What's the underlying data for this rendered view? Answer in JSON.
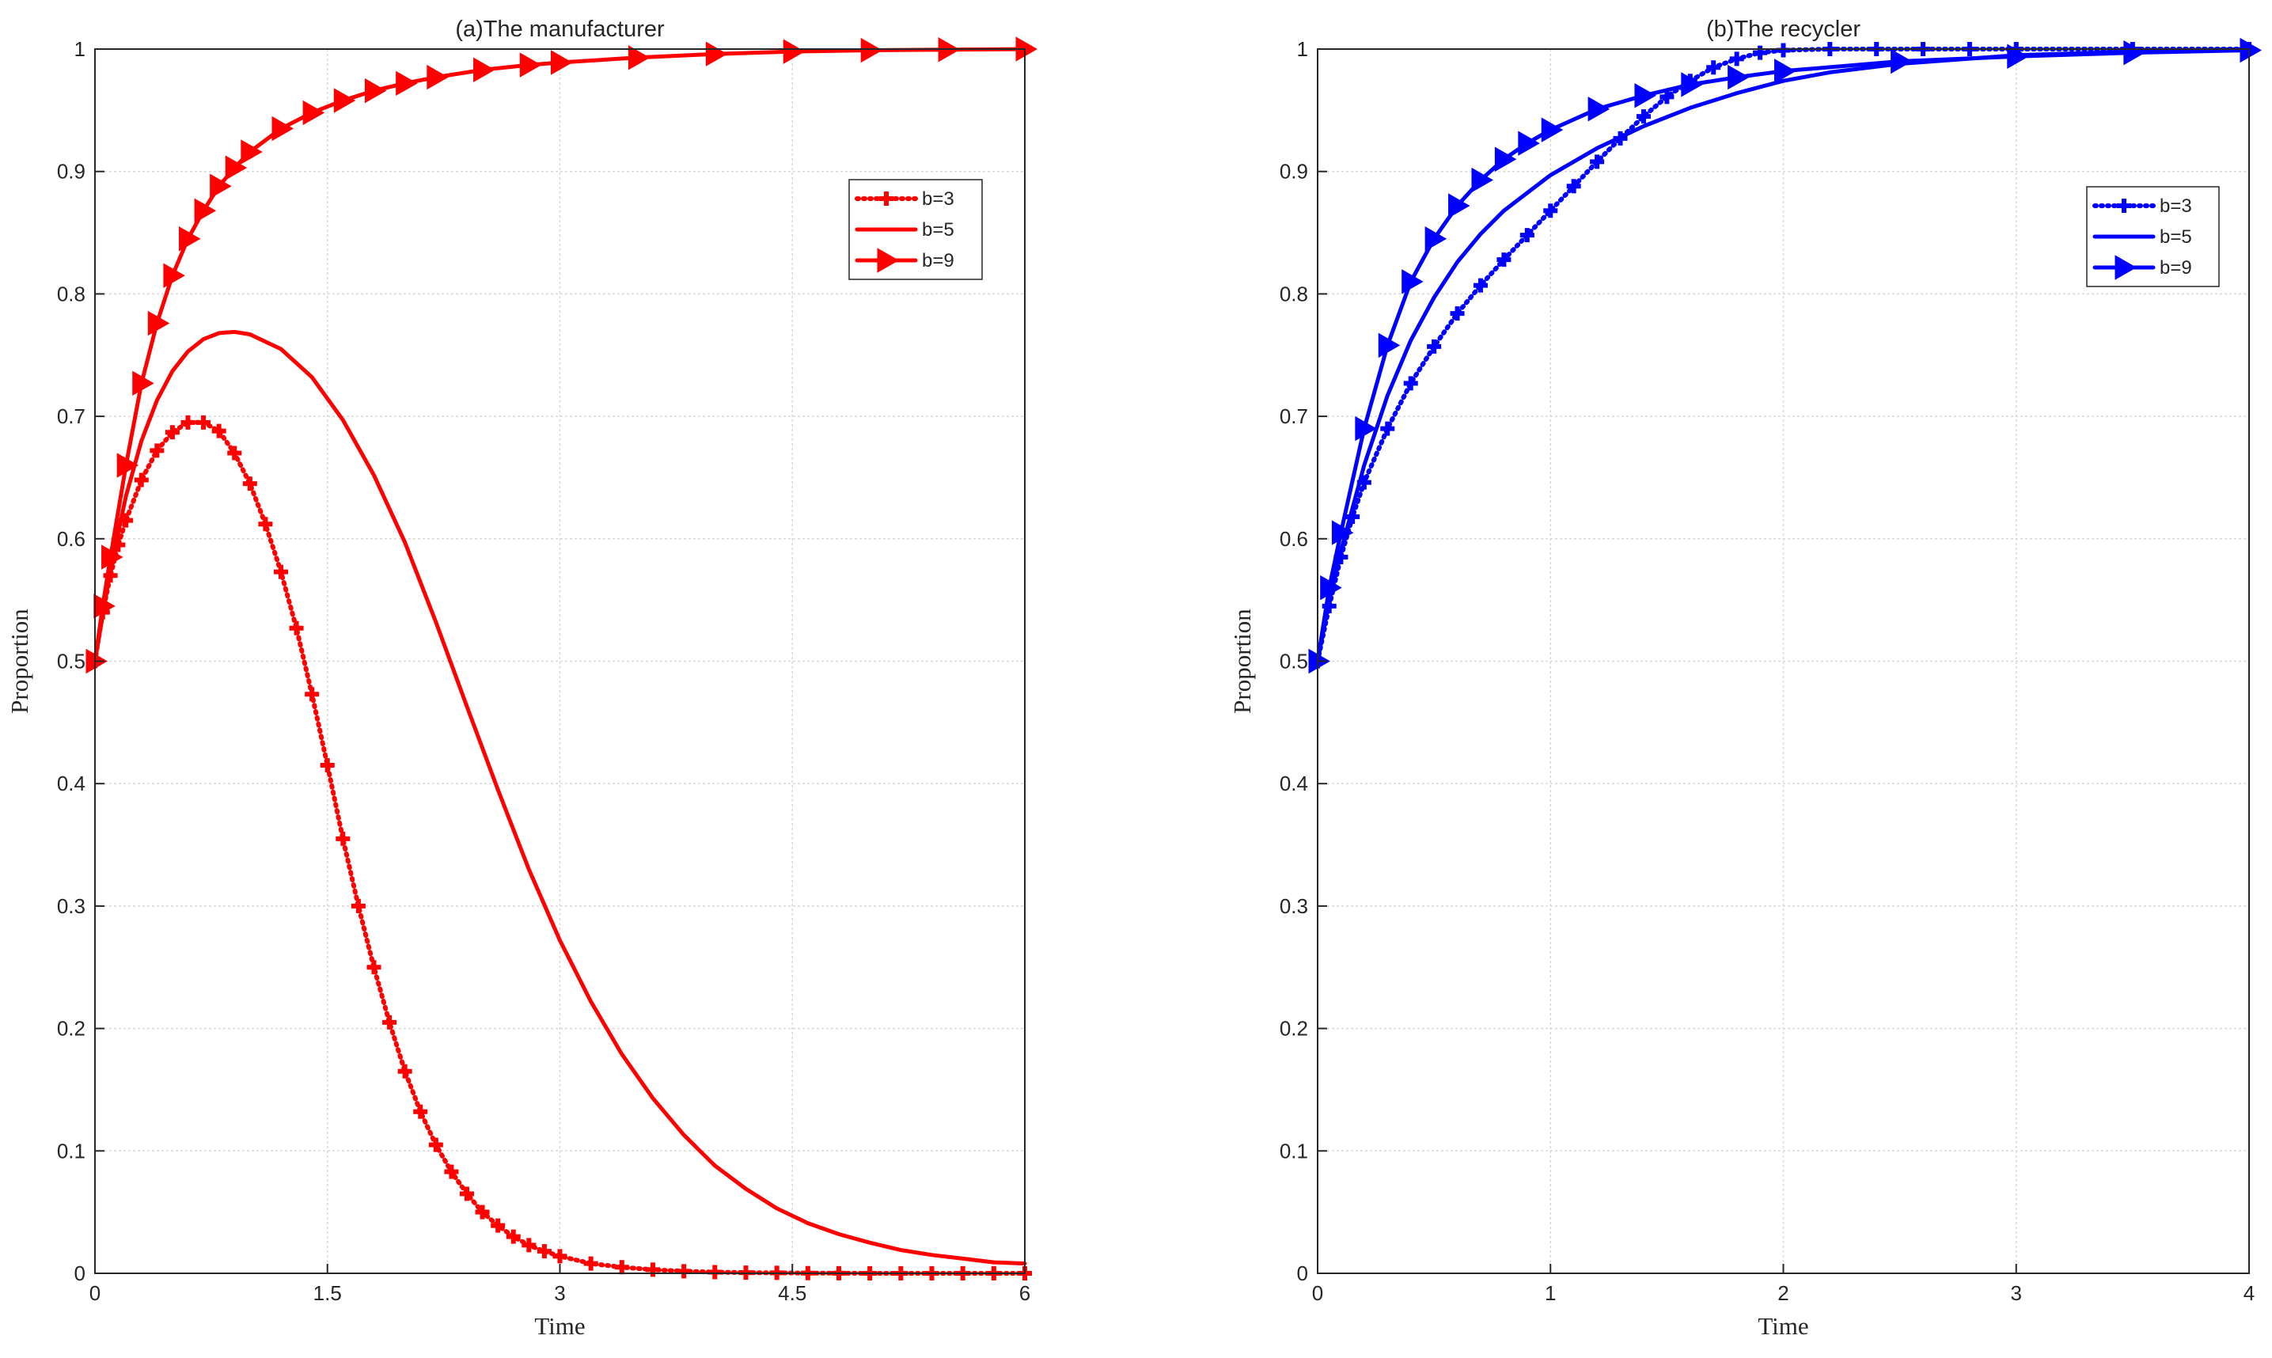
{
  "chart_data": [
    {
      "type": "line",
      "title": "(a)The manufacturer",
      "xlabel": "Time",
      "ylabel": "Proportion",
      "xlim": [
        0,
        6
      ],
      "ylim": [
        0,
        1
      ],
      "xticks": [
        0,
        1.5,
        3,
        4.5,
        6
      ],
      "xtick_labels": [
        "0",
        "1.5",
        "3",
        "4.5",
        "6"
      ],
      "yticks": [
        0,
        0.1,
        0.2,
        0.3,
        0.4,
        0.5,
        0.6,
        0.7,
        0.8,
        0.9,
        1
      ],
      "ytick_labels": [
        "0",
        "0.1",
        "0.2",
        "0.3",
        "0.4",
        "0.5",
        "0.6",
        "0.7",
        "0.8",
        "0.9",
        "1"
      ],
      "grid": true,
      "legend_position": "top-right",
      "color": "#ff0000",
      "series": [
        {
          "name": "b=3",
          "style": "dotted-plus",
          "x": [
            0,
            0.05,
            0.1,
            0.15,
            0.2,
            0.3,
            0.4,
            0.5,
            0.6,
            0.7,
            0.8,
            0.9,
            1.0,
            1.1,
            1.2,
            1.3,
            1.4,
            1.5,
            1.6,
            1.7,
            1.8,
            1.9,
            2.0,
            2.1,
            2.2,
            2.3,
            2.4,
            2.5,
            2.6,
            2.7,
            2.8,
            2.9,
            3.0,
            3.2,
            3.4,
            3.6,
            3.8,
            4.0,
            4.2,
            4.4,
            4.6,
            4.8,
            5.0,
            5.2,
            5.4,
            5.6,
            5.8,
            6.0
          ],
          "values": [
            0.5,
            0.54,
            0.57,
            0.595,
            0.615,
            0.648,
            0.672,
            0.687,
            0.695,
            0.695,
            0.688,
            0.67,
            0.645,
            0.612,
            0.573,
            0.527,
            0.473,
            0.415,
            0.355,
            0.3,
            0.25,
            0.205,
            0.165,
            0.132,
            0.105,
            0.083,
            0.065,
            0.05,
            0.039,
            0.03,
            0.023,
            0.018,
            0.014,
            0.008,
            0.005,
            0.003,
            0.0017,
            0.001,
            0.0006,
            0.0004,
            0.0002,
            0.0001,
            0,
            0,
            0,
            0,
            0,
            0
          ]
        },
        {
          "name": "b=5",
          "style": "solid",
          "x": [
            0,
            0.1,
            0.2,
            0.3,
            0.4,
            0.5,
            0.6,
            0.7,
            0.8,
            0.9,
            1.0,
            1.2,
            1.4,
            1.6,
            1.8,
            2.0,
            2.2,
            2.4,
            2.6,
            2.8,
            3.0,
            3.2,
            3.4,
            3.6,
            3.8,
            4.0,
            4.2,
            4.4,
            4.6,
            4.8,
            5.0,
            5.2,
            5.4,
            5.6,
            5.8,
            6.0
          ],
          "values": [
            0.5,
            0.575,
            0.635,
            0.68,
            0.713,
            0.737,
            0.753,
            0.763,
            0.768,
            0.769,
            0.767,
            0.755,
            0.732,
            0.697,
            0.652,
            0.597,
            0.532,
            0.463,
            0.395,
            0.33,
            0.272,
            0.222,
            0.179,
            0.143,
            0.113,
            0.088,
            0.069,
            0.053,
            0.041,
            0.032,
            0.025,
            0.019,
            0.015,
            0.012,
            0.009,
            0.008
          ]
        },
        {
          "name": "b=9",
          "style": "solid-triangle",
          "x": [
            0,
            0.05,
            0.1,
            0.2,
            0.3,
            0.4,
            0.5,
            0.6,
            0.7,
            0.8,
            0.9,
            1.0,
            1.2,
            1.4,
            1.6,
            1.8,
            2.0,
            2.2,
            2.5,
            2.8,
            3.0,
            3.5,
            4.0,
            4.5,
            5.0,
            5.5,
            6.0
          ],
          "values": [
            0.5,
            0.545,
            0.585,
            0.66,
            0.727,
            0.776,
            0.815,
            0.845,
            0.868,
            0.888,
            0.903,
            0.916,
            0.935,
            0.948,
            0.958,
            0.966,
            0.972,
            0.977,
            0.983,
            0.987,
            0.989,
            0.993,
            0.996,
            0.998,
            0.999,
            0.9995,
            1.0
          ]
        }
      ]
    },
    {
      "type": "line",
      "title": "(b)The recycler",
      "xlabel": "Time",
      "ylabel": "Proportion",
      "xlim": [
        0,
        4
      ],
      "ylim": [
        0,
        1
      ],
      "xticks": [
        0,
        1,
        2,
        3,
        4
      ],
      "xtick_labels": [
        "0",
        "1",
        "2",
        "3",
        "4"
      ],
      "yticks": [
        0,
        0.1,
        0.2,
        0.3,
        0.4,
        0.5,
        0.6,
        0.7,
        0.8,
        0.9,
        1
      ],
      "ytick_labels": [
        "0",
        "0.1",
        "0.2",
        "0.3",
        "0.4",
        "0.5",
        "0.6",
        "0.7",
        "0.8",
        "0.9",
        "1"
      ],
      "grid": true,
      "legend_position": "top-right",
      "color": "#0000ff",
      "series": [
        {
          "name": "b=3",
          "style": "dotted-plus",
          "x": [
            0,
            0.05,
            0.1,
            0.15,
            0.2,
            0.3,
            0.4,
            0.5,
            0.6,
            0.7,
            0.8,
            0.9,
            1.0,
            1.1,
            1.2,
            1.3,
            1.4,
            1.5,
            1.6,
            1.7,
            1.8,
            1.9,
            2.0,
            2.2,
            2.4,
            2.6,
            2.8,
            3.0,
            3.5,
            4.0
          ],
          "values": [
            0.5,
            0.545,
            0.585,
            0.618,
            0.646,
            0.69,
            0.727,
            0.757,
            0.784,
            0.807,
            0.828,
            0.848,
            0.868,
            0.888,
            0.908,
            0.927,
            0.945,
            0.961,
            0.974,
            0.985,
            0.992,
            0.997,
            0.999,
            1.0,
            1.0,
            1.0,
            1.0,
            1.0,
            1.0,
            1.0
          ]
        },
        {
          "name": "b=5",
          "style": "solid",
          "x": [
            0,
            0.05,
            0.1,
            0.2,
            0.3,
            0.4,
            0.5,
            0.6,
            0.7,
            0.8,
            1.0,
            1.2,
            1.4,
            1.6,
            1.8,
            2.0,
            2.2,
            2.5,
            3.0,
            3.5,
            4.0
          ],
          "values": [
            0.5,
            0.55,
            0.59,
            0.66,
            0.717,
            0.762,
            0.797,
            0.826,
            0.849,
            0.868,
            0.897,
            0.919,
            0.937,
            0.952,
            0.964,
            0.974,
            0.981,
            0.988,
            0.995,
            0.998,
            1.0
          ]
        },
        {
          "name": "b=9",
          "style": "solid-triangle",
          "x": [
            0,
            0.05,
            0.1,
            0.2,
            0.3,
            0.4,
            0.5,
            0.6,
            0.7,
            0.8,
            0.9,
            1.0,
            1.2,
            1.4,
            1.6,
            1.8,
            2.0,
            2.5,
            3.0,
            3.5,
            4.0
          ],
          "values": [
            0.5,
            0.56,
            0.605,
            0.69,
            0.758,
            0.81,
            0.845,
            0.872,
            0.893,
            0.91,
            0.923,
            0.934,
            0.951,
            0.962,
            0.971,
            0.977,
            0.982,
            0.99,
            0.994,
            0.997,
            0.999
          ]
        }
      ]
    }
  ]
}
